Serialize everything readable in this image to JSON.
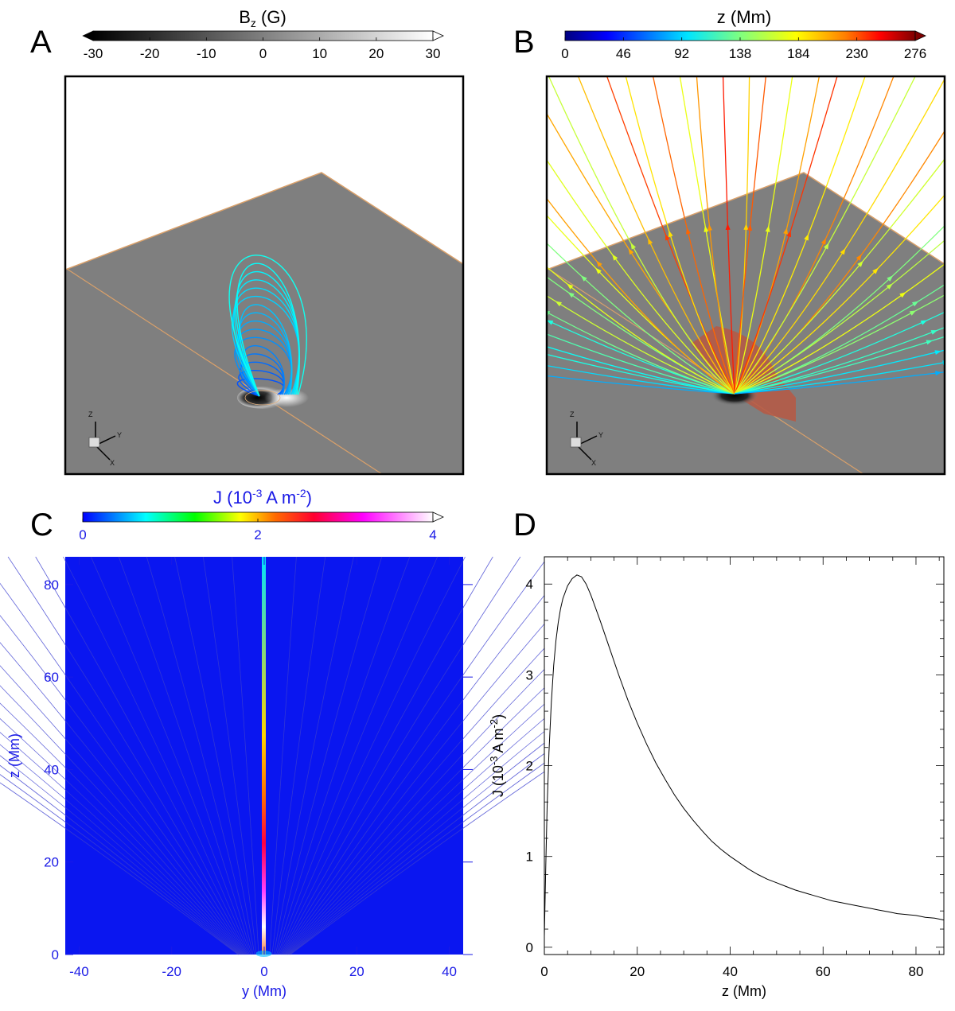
{
  "panels": {
    "A": {
      "label": "A"
    },
    "B": {
      "label": "B"
    },
    "C": {
      "label": "C"
    },
    "D": {
      "label": "D"
    }
  },
  "colors": {
    "plane_gray": "#7f7f7f",
    "frame": "#000000",
    "edge_orange": "#d9a06a",
    "blue_axis": "#1a1ae6",
    "blue_field": "#0a16f0"
  },
  "axes3d": {
    "x": "X",
    "y": "Y",
    "z": "Z"
  },
  "chart_data": [
    {
      "id": "A",
      "type": "heatmap",
      "title": "B",
      "title_subscript": "z",
      "title_suffix": " (G)",
      "colorbar": {
        "colormap": "gray",
        "ticks": [
          "-30",
          "-20",
          "-10",
          "0",
          "10",
          "20",
          "30"
        ],
        "range": [
          -30,
          30
        ]
      }
    },
    {
      "id": "B",
      "type": "heatmap",
      "title": "z (Mm)",
      "colorbar": {
        "colormap": "jet",
        "ticks": [
          "0",
          "46",
          "92",
          "138",
          "184",
          "230",
          "276"
        ],
        "range": [
          0,
          276
        ]
      }
    },
    {
      "id": "C",
      "type": "heatmap",
      "title": "J (10",
      "title_exp": "-3",
      "title_mid": " A m",
      "title_exp2": "-2",
      "title_end": ")",
      "colorbar": {
        "colormap": "rainbow-white",
        "ticks": [
          "0",
          "2",
          "4"
        ],
        "range": [
          0,
          4
        ]
      },
      "xlabel": "y (Mm)",
      "ylabel": "z (Mm)",
      "xticks": [
        "-40",
        "-20",
        "0",
        "20",
        "40"
      ],
      "xtick_values": [
        -40,
        -20,
        0,
        20,
        40
      ],
      "yticks": [
        "0",
        "20",
        "40",
        "60",
        "80"
      ],
      "ytick_values": [
        0,
        20,
        40,
        60,
        80
      ],
      "xlim": [
        -43,
        43
      ],
      "ylim": [
        0,
        86
      ]
    },
    {
      "id": "D",
      "type": "line",
      "xlabel": "z (Mm)",
      "ylabel": "J (10",
      "ylabel_exp": "-3",
      "ylabel_mid": " A m",
      "ylabel_exp2": "-2",
      "ylabel_end": ")",
      "xticks": [
        "0",
        "20",
        "40",
        "60",
        "80"
      ],
      "xtick_values": [
        0,
        20,
        40,
        60,
        80
      ],
      "yticks": [
        "0",
        "1",
        "2",
        "3",
        "4"
      ],
      "ytick_values": [
        0,
        1,
        2,
        3,
        4
      ],
      "xlim": [
        0,
        86
      ],
      "ylim": [
        -0.08,
        4.3
      ],
      "series": [
        {
          "name": "J",
          "x": [
            0,
            0.3,
            0.6,
            1,
            1.5,
            2,
            2.5,
            3,
            3.5,
            4,
            5,
            6,
            7,
            8,
            9,
            10,
            12,
            14,
            16,
            18,
            20,
            22,
            24,
            26,
            28,
            30,
            32,
            34,
            36,
            38,
            40,
            42,
            44,
            46,
            48,
            50,
            52,
            54,
            56,
            58,
            60,
            62,
            64,
            66,
            68,
            70,
            72,
            74,
            76,
            78,
            80,
            82,
            84,
            86
          ],
          "y": [
            0.12,
            0.9,
            1.55,
            2.15,
            2.7,
            3.1,
            3.38,
            3.58,
            3.73,
            3.84,
            3.98,
            4.06,
            4.1,
            4.08,
            4.0,
            3.88,
            3.6,
            3.3,
            3.0,
            2.72,
            2.47,
            2.24,
            2.03,
            1.85,
            1.68,
            1.53,
            1.4,
            1.28,
            1.17,
            1.08,
            1.0,
            0.93,
            0.86,
            0.8,
            0.75,
            0.71,
            0.67,
            0.63,
            0.6,
            0.57,
            0.54,
            0.51,
            0.49,
            0.47,
            0.45,
            0.43,
            0.41,
            0.39,
            0.37,
            0.36,
            0.35,
            0.33,
            0.32,
            0.3
          ]
        }
      ]
    }
  ]
}
